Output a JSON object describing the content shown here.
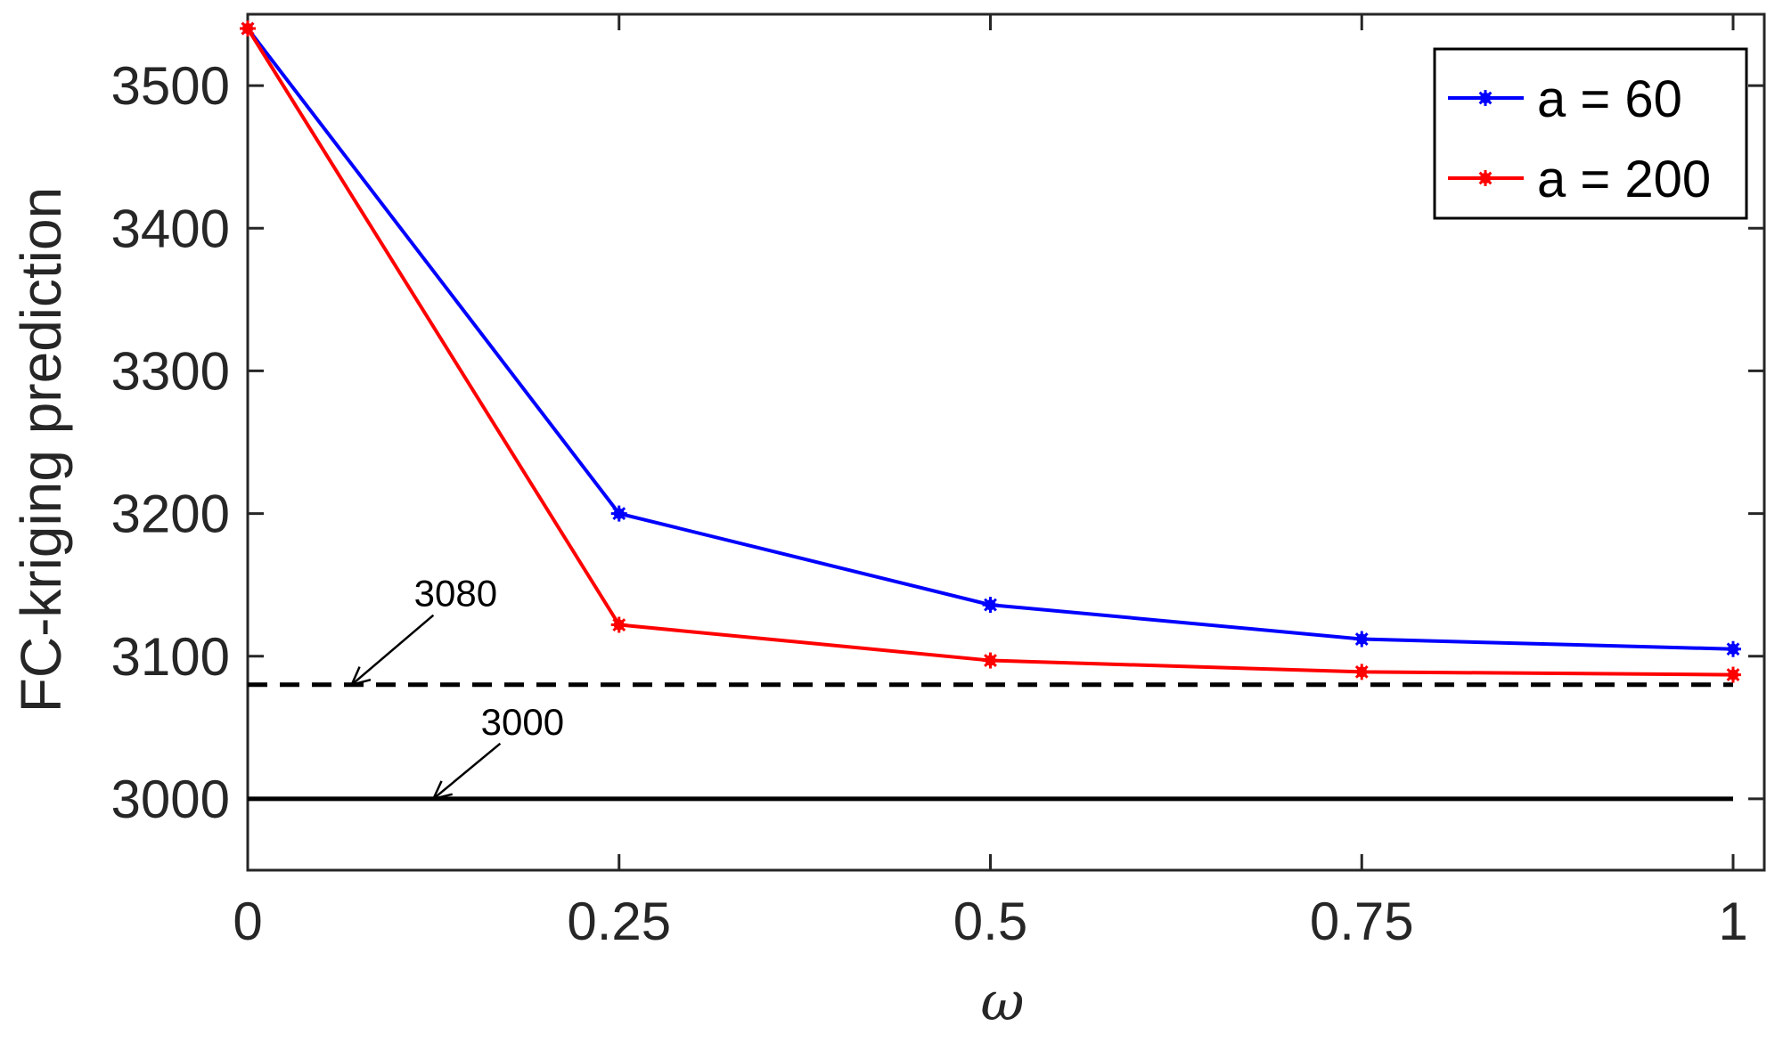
{
  "chart_data": {
    "type": "line",
    "x": [
      0,
      0.25,
      0.5,
      0.75,
      1
    ],
    "xlim": [
      0,
      1
    ],
    "ylim": [
      2950,
      3550
    ],
    "xticks": [
      0,
      0.25,
      0.5,
      0.75,
      1
    ],
    "xtick_labels": [
      "0",
      "0.25",
      "0.5",
      "0.75",
      "1"
    ],
    "yticks": [
      3000,
      3100,
      3200,
      3300,
      3400,
      3500
    ],
    "ytick_labels": [
      "3000",
      "3100",
      "3200",
      "3300",
      "3400",
      "3500"
    ],
    "xlabel": "ω",
    "ylabel": "FC-kriging prediction",
    "grid": false,
    "legend_position": "top-right",
    "series": [
      {
        "name": "a = 60",
        "color": "#0000ff",
        "marker": "asterisk",
        "values": [
          3540,
          3200,
          3136,
          3112,
          3105
        ]
      },
      {
        "name": "a = 200",
        "color": "#ff0000",
        "marker": "asterisk",
        "values": [
          3540,
          3122,
          3097,
          3089,
          3087
        ]
      }
    ],
    "reference_lines": [
      {
        "y": 3080,
        "style": "dashed",
        "color": "#000000",
        "label": "3080"
      },
      {
        "y": 3000,
        "style": "solid",
        "color": "#000000",
        "label": "3000"
      }
    ],
    "annotations": [
      {
        "text": "3080",
        "arrow_to": [
          0.07,
          3080
        ],
        "text_at": [
          0.14,
          3135
        ]
      },
      {
        "text": "3000",
        "arrow_to": [
          0.125,
          3000
        ],
        "text_at": [
          0.185,
          3045
        ]
      }
    ]
  }
}
